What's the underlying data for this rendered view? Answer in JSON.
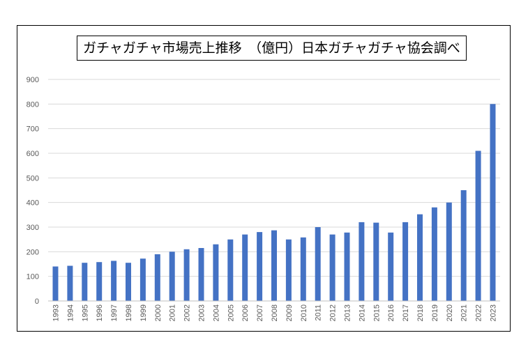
{
  "chart_data": {
    "type": "bar",
    "title": "ガチャガチャ市場売上推移　（億円）日本ガチャガチャ協会調べ",
    "xlabel": "",
    "ylabel": "",
    "categories": [
      "1993",
      "1994",
      "1995",
      "1996",
      "1997",
      "1998",
      "1999",
      "2000",
      "2001",
      "2002",
      "2003",
      "2004",
      "2005",
      "2006",
      "2007",
      "2008",
      "2009",
      "2010",
      "2011",
      "2012",
      "2013",
      "2014",
      "2015",
      "2016",
      "2017",
      "2018",
      "2019",
      "2020",
      "2021",
      "2022",
      "2023"
    ],
    "values": [
      140,
      143,
      155,
      158,
      163,
      155,
      172,
      190,
      200,
      210,
      215,
      230,
      250,
      270,
      280,
      287,
      250,
      258,
      300,
      270,
      278,
      320,
      318,
      278,
      320,
      352,
      380,
      400,
      450,
      610,
      800
    ],
    "ylim": [
      0,
      900
    ],
    "yticks": [
      0,
      100,
      200,
      300,
      400,
      500,
      600,
      700,
      800,
      900
    ],
    "grid": true,
    "legend": "none",
    "colors": {
      "bar": "#4472c4",
      "grid": "#d9d9d9",
      "axis": "#bfbfbf",
      "tick_text": "#595959"
    }
  }
}
